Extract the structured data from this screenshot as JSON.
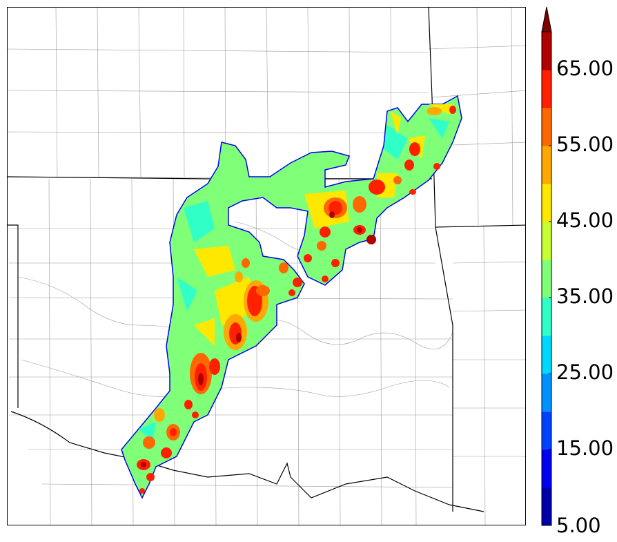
{
  "colorbar": {
    "ticks": [
      "5.00",
      "15.00",
      "25.00",
      "35.00",
      "45.00",
      "55.00",
      "65.00"
    ],
    "bins": [
      {
        "min": 5,
        "color": "#0000a8"
      },
      {
        "min": 10,
        "color": "#0000f0"
      },
      {
        "min": 15,
        "color": "#0040ff"
      },
      {
        "min": 20,
        "color": "#0090ff"
      },
      {
        "min": 25,
        "color": "#00d8ff"
      },
      {
        "min": 30,
        "color": "#30ffc8"
      },
      {
        "min": 35,
        "color": "#80ff78"
      },
      {
        "min": 40,
        "color": "#c8ff30"
      },
      {
        "min": 45,
        "color": "#ffe800"
      },
      {
        "min": 50,
        "color": "#ffa800"
      },
      {
        "min": 55,
        "color": "#ff6800"
      },
      {
        "min": 60,
        "color": "#ff2000"
      },
      {
        "min": 65,
        "color": "#b00000"
      }
    ],
    "extend": "max",
    "extend_color": "#800000"
  }
}
